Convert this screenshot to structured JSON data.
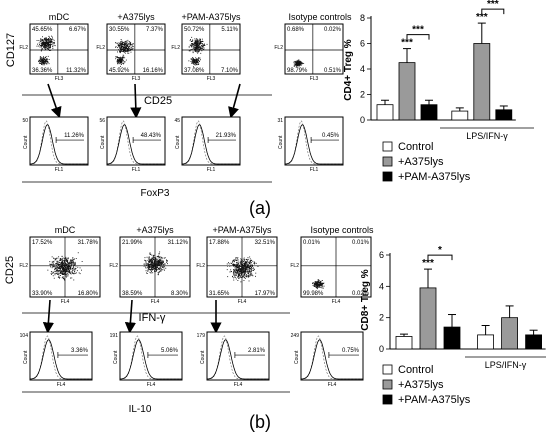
{
  "panel_a": {
    "panel_label": "(a)",
    "dot_titles": [
      "mDC",
      "+A375lys",
      "+PAM-A375lys",
      "Isotype controls"
    ],
    "y_marker": "CD127",
    "x_marker": "CD25",
    "hist_marker": "FoxP3",
    "dot_axis": {
      "y": "FL2",
      "x": "FL3"
    },
    "hist_axis": {
      "y": "Count",
      "x": "FL1"
    },
    "dot_quadrants": [
      [
        "45.65%",
        "6.67%",
        "36.36%",
        "11.32%"
      ],
      [
        "30.55%",
        "7.37%",
        "45.92%",
        "16.16%"
      ],
      [
        "50.72%",
        "5.11%",
        "37.08%",
        "7.10%"
      ],
      [
        "0.68%",
        "0.02%",
        "98.79%",
        "0.51%"
      ]
    ],
    "hist_percent": [
      "11.26%",
      "48.43%",
      "21.93%",
      "0.45%"
    ],
    "hist_ymax": [
      "50",
      "56",
      "45",
      "31"
    ]
  },
  "panel_b": {
    "panel_label": "(b)",
    "dot_titles": [
      "mDC",
      "+A375lys",
      "+PAM-A375lys",
      "Isotype controls"
    ],
    "y_marker": "CD25",
    "x_marker": "IFN-γ",
    "hist_marker": "IL-10",
    "dot_axis": {
      "y": "FL2",
      "x": "FL4"
    },
    "hist_axis": {
      "y": "Count",
      "x": "FL4"
    },
    "dot_quadrants": [
      [
        "17.52%",
        "31.78%",
        "33.90%",
        "16.80%"
      ],
      [
        "21.99%",
        "31.12%",
        "38.59%",
        "8.30%"
      ],
      [
        "17.88%",
        "32.51%",
        "31.65%",
        "17.97%"
      ],
      [
        "0.01%",
        "0.01%",
        "99.98%",
        "0.02%"
      ]
    ],
    "hist_percent": [
      "3.36%",
      "5.06%",
      "2.81%",
      "0.75%"
    ],
    "hist_ymax": [
      "104",
      "191",
      "179",
      "249"
    ]
  },
  "chart_data": [
    {
      "type": "bar",
      "ylabel": "CD4+ Treg %",
      "ylim": [
        0,
        8
      ],
      "yticks": [
        "0",
        "2",
        "4",
        "6",
        "8"
      ],
      "group_label": "LPS/IFN-γ",
      "categories": [
        "Control",
        "+A375lys",
        "+PAM-A375lys",
        "Control",
        "+A375lys",
        "+PAM-A375lys"
      ],
      "values": [
        1.2,
        4.5,
        1.2,
        0.7,
        6.0,
        0.8
      ],
      "errors": [
        0.35,
        1.1,
        0.35,
        0.25,
        1.6,
        0.3
      ],
      "colors": [
        "#ffffff",
        "#9a9a9a",
        "#000000",
        "#ffffff",
        "#9a9a9a",
        "#000000"
      ],
      "significance": [
        {
          "bar": 1,
          "text": "***"
        },
        {
          "from": 1,
          "to": 2,
          "text": "***"
        },
        {
          "bar": 4,
          "text": "***"
        },
        {
          "from": 4,
          "to": 5,
          "text": "***"
        }
      ]
    },
    {
      "type": "bar",
      "ylabel": "CD8+ Treg %",
      "ylim": [
        0,
        6
      ],
      "yticks": [
        "0",
        "2",
        "4",
        "6"
      ],
      "group_label": "LPS/IFN-γ",
      "categories": [
        "Control",
        "+A375lys",
        "+PAM-A375lys",
        "Control",
        "+A375lys",
        "+PAM-A375lys"
      ],
      "values": [
        0.8,
        3.9,
        1.4,
        0.9,
        2.0,
        0.9
      ],
      "errors": [
        0.15,
        1.2,
        0.8,
        0.6,
        0.75,
        0.3
      ],
      "colors": [
        "#ffffff",
        "#9a9a9a",
        "#000000",
        "#ffffff",
        "#9a9a9a",
        "#000000"
      ],
      "significance": [
        {
          "bar": 1,
          "text": "***"
        },
        {
          "from": 1,
          "to": 2,
          "text": "*"
        }
      ]
    }
  ],
  "legend": [
    {
      "label": "Control",
      "color": "#ffffff"
    },
    {
      "label": "+A375lys",
      "color": "#9a9a9a"
    },
    {
      "label": "+PAM-A375lys",
      "color": "#000000"
    }
  ]
}
